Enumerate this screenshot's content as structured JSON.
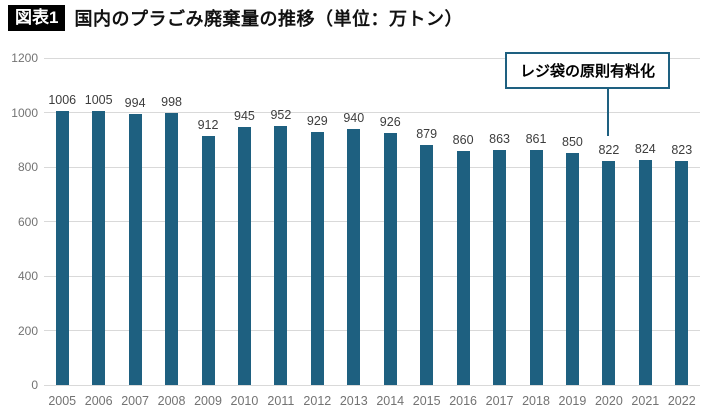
{
  "header": {
    "badge": "図表1",
    "title": "国内のプラごみ廃棄量の推移（単位：万トン）"
  },
  "annotation": {
    "label": "レジ袋の原則有料化",
    "target_year": "2020"
  },
  "colors": {
    "bar": "#1e6080",
    "annotation_border": "#1e6080",
    "gridline": "#d9d9d9",
    "value_label": "#3d3d3d",
    "axis_label": "#737373",
    "badge_bg": "#000000",
    "badge_text": "#ffffff"
  },
  "chart_data": {
    "type": "bar",
    "title": "国内のプラごみ廃棄量の推移（単位：万トン）",
    "categories": [
      "2005",
      "2006",
      "2007",
      "2008",
      "2009",
      "2010",
      "2011",
      "2012",
      "2013",
      "2014",
      "2015",
      "2016",
      "2017",
      "2018",
      "2019",
      "2020",
      "2021",
      "2022"
    ],
    "values": [
      1006,
      1005,
      994,
      998,
      912,
      945,
      952,
      929,
      940,
      926,
      879,
      860,
      863,
      861,
      850,
      822,
      824,
      823
    ],
    "xlabel": "",
    "ylabel": "",
    "unit": "万トン",
    "ylim": [
      0,
      1200
    ],
    "yticks": [
      0,
      200,
      400,
      600,
      800,
      1000,
      1200
    ],
    "grid": "horizontal",
    "legend": "none",
    "annotations": [
      {
        "text": "レジ袋の原則有料化",
        "target_year": "2020"
      }
    ]
  }
}
